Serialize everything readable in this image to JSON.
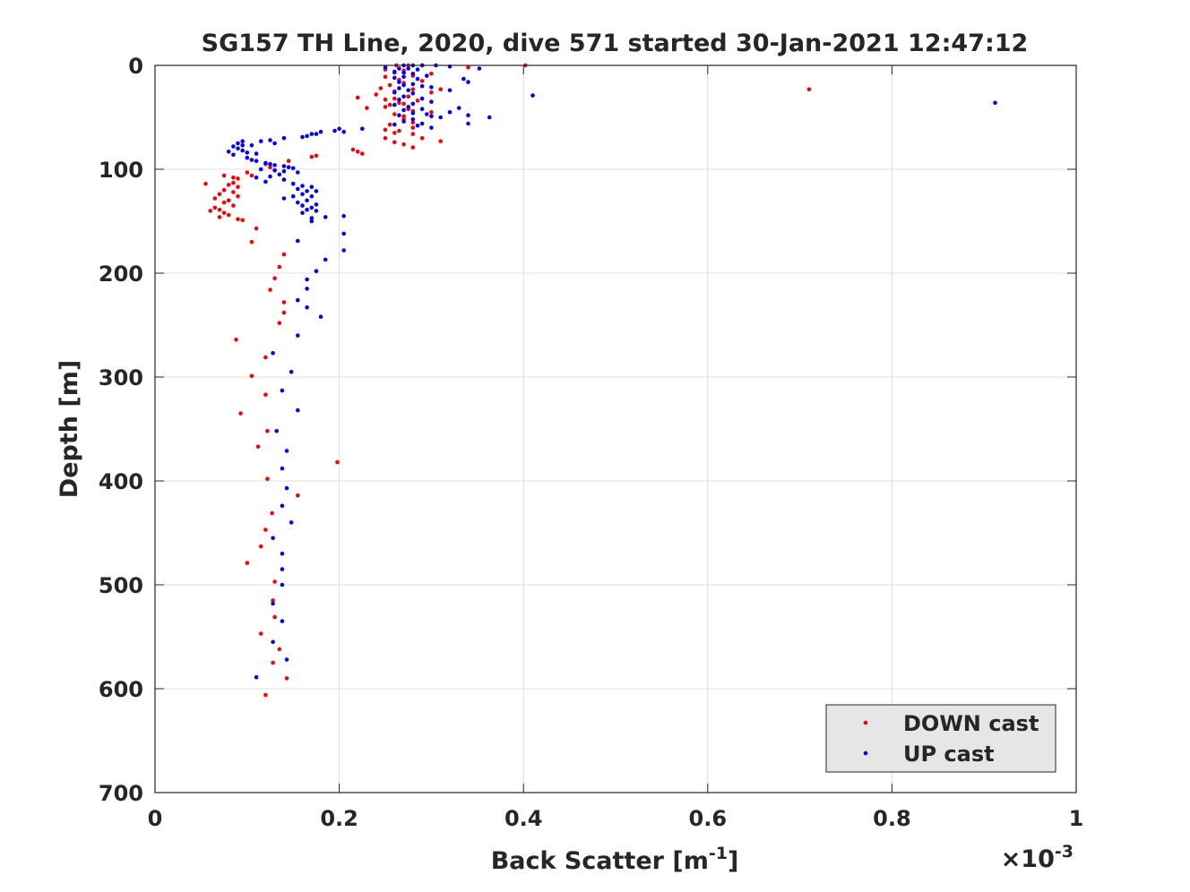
{
  "chart_data": {
    "type": "scatter",
    "title": "SG157 TH Line, 2020, dive 571 started 30-Jan-2021 12:47:12",
    "xlabel_main": "Back Scatter [m",
    "xlabel_sup": "-1",
    "xlabel_end": "]",
    "ylabel": "Depth [m]",
    "exponent_times": "×10",
    "exponent_power": "-3",
    "xlim": [
      0,
      1
    ],
    "ylim": [
      0,
      700
    ],
    "y_reversed": true,
    "grid": true,
    "legend_position": "bottom-right",
    "xticks": [
      0,
      0.2,
      0.4,
      0.6,
      0.8,
      1
    ],
    "xtick_labels": [
      "0",
      "0.2",
      "0.4",
      "0.6",
      "0.8",
      "1"
    ],
    "yticks": [
      0,
      100,
      200,
      300,
      400,
      500,
      600,
      700
    ],
    "ytick_labels": [
      "0",
      "100",
      "200",
      "300",
      "400",
      "500",
      "600",
      "700"
    ],
    "series": [
      {
        "name": "DOWN cast",
        "color": "#ff0000",
        "points": [
          [
            0.262,
            0
          ],
          [
            0.275,
            0
          ],
          [
            0.29,
            0
          ],
          [
            0.402,
            0
          ],
          [
            0.34,
            2
          ],
          [
            0.25,
            4
          ],
          [
            0.27,
            5
          ],
          [
            0.26,
            7
          ],
          [
            0.3,
            8
          ],
          [
            0.28,
            10
          ],
          [
            0.25,
            11
          ],
          [
            0.265,
            14
          ],
          [
            0.29,
            15
          ],
          [
            0.27,
            17
          ],
          [
            0.255,
            19
          ],
          [
            0.245,
            22
          ],
          [
            0.28,
            23
          ],
          [
            0.31,
            23
          ],
          [
            0.71,
            23
          ],
          [
            0.26,
            25
          ],
          [
            0.3,
            26
          ],
          [
            0.24,
            28
          ],
          [
            0.275,
            30
          ],
          [
            0.22,
            31
          ],
          [
            0.26,
            32
          ],
          [
            0.25,
            33
          ],
          [
            0.285,
            34
          ],
          [
            0.265,
            36
          ],
          [
            0.27,
            37
          ],
          [
            0.255,
            38
          ],
          [
            0.25,
            40
          ],
          [
            0.23,
            41
          ],
          [
            0.275,
            42
          ],
          [
            0.28,
            44
          ],
          [
            0.3,
            45
          ],
          [
            0.26,
            47
          ],
          [
            0.27,
            49
          ],
          [
            0.27,
            52
          ],
          [
            0.28,
            55
          ],
          [
            0.255,
            57
          ],
          [
            0.28,
            60
          ],
          [
            0.25,
            62
          ],
          [
            0.265,
            63
          ],
          [
            0.26,
            65
          ],
          [
            0.28,
            66
          ],
          [
            0.25,
            70
          ],
          [
            0.29,
            70
          ],
          [
            0.26,
            74
          ],
          [
            0.31,
            73
          ],
          [
            0.27,
            76
          ],
          [
            0.28,
            79
          ],
          [
            0.215,
            81
          ],
          [
            0.22,
            83
          ],
          [
            0.225,
            85
          ],
          [
            0.175,
            87
          ],
          [
            0.17,
            88
          ],
          [
            0.145,
            92
          ],
          [
            0.12,
            95
          ],
          [
            0.125,
            98
          ],
          [
            0.13,
            101
          ],
          [
            0.1,
            103
          ],
          [
            0.105,
            106
          ],
          [
            0.075,
            106
          ],
          [
            0.085,
            108
          ],
          [
            0.09,
            109
          ],
          [
            0.055,
            114
          ],
          [
            0.085,
            113
          ],
          [
            0.08,
            115
          ],
          [
            0.09,
            117
          ],
          [
            0.075,
            120
          ],
          [
            0.085,
            122
          ],
          [
            0.07,
            124
          ],
          [
            0.09,
            126
          ],
          [
            0.065,
            128
          ],
          [
            0.08,
            130
          ],
          [
            0.075,
            132
          ],
          [
            0.085,
            135
          ],
          [
            0.065,
            137
          ],
          [
            0.07,
            139
          ],
          [
            0.06,
            140
          ],
          [
            0.075,
            142
          ],
          [
            0.08,
            144
          ],
          [
            0.07,
            146
          ],
          [
            0.09,
            148
          ],
          [
            0.095,
            149
          ],
          [
            0.11,
            157
          ],
          [
            0.105,
            170
          ],
          [
            0.14,
            182
          ],
          [
            0.135,
            194
          ],
          [
            0.13,
            205
          ],
          [
            0.125,
            216
          ],
          [
            0.14,
            228
          ],
          [
            0.14,
            238
          ],
          [
            0.135,
            248
          ],
          [
            0.088,
            264
          ],
          [
            0.12,
            281
          ],
          [
            0.105,
            299
          ],
          [
            0.12,
            317
          ],
          [
            0.093,
            335
          ],
          [
            0.122,
            352
          ],
          [
            0.112,
            367
          ],
          [
            0.198,
            382
          ],
          [
            0.122,
            398
          ],
          [
            0.155,
            414
          ],
          [
            0.127,
            431
          ],
          [
            0.12,
            447
          ],
          [
            0.115,
            463
          ],
          [
            0.1,
            479
          ],
          [
            0.13,
            497
          ],
          [
            0.128,
            515
          ],
          [
            0.13,
            531
          ],
          [
            0.115,
            547
          ],
          [
            0.135,
            562
          ],
          [
            0.128,
            575
          ],
          [
            0.143,
            590
          ],
          [
            0.12,
            606
          ]
        ]
      },
      {
        "name": "UP cast",
        "color": "#0000ff",
        "points": [
          [
            0.27,
            0
          ],
          [
            0.28,
            0
          ],
          [
            0.29,
            0
          ],
          [
            0.305,
            0
          ],
          [
            0.32,
            1
          ],
          [
            0.25,
            2
          ],
          [
            0.265,
            3
          ],
          [
            0.275,
            3
          ],
          [
            0.285,
            4
          ],
          [
            0.352,
            3
          ],
          [
            0.26,
            6
          ],
          [
            0.27,
            7
          ],
          [
            0.28,
            8
          ],
          [
            0.295,
            10
          ],
          [
            0.27,
            11
          ],
          [
            0.26,
            12
          ],
          [
            0.285,
            13
          ],
          [
            0.335,
            13
          ],
          [
            0.34,
            16
          ],
          [
            0.265,
            16
          ],
          [
            0.28,
            18
          ],
          [
            0.27,
            19
          ],
          [
            0.29,
            20
          ],
          [
            0.3,
            21
          ],
          [
            0.265,
            22
          ],
          [
            0.275,
            24
          ],
          [
            0.26,
            26
          ],
          [
            0.32,
            24
          ],
          [
            0.28,
            27
          ],
          [
            0.41,
            29
          ],
          [
            0.27,
            30
          ],
          [
            0.29,
            32
          ],
          [
            0.265,
            33
          ],
          [
            0.3,
            35
          ],
          [
            0.28,
            37
          ],
          [
            0.912,
            36
          ],
          [
            0.26,
            38
          ],
          [
            0.275,
            40
          ],
          [
            0.33,
            41
          ],
          [
            0.29,
            42
          ],
          [
            0.27,
            43
          ],
          [
            0.28,
            46
          ],
          [
            0.32,
            45
          ],
          [
            0.295,
            47
          ],
          [
            0.265,
            48
          ],
          [
            0.3,
            49
          ],
          [
            0.34,
            48
          ],
          [
            0.31,
            50
          ],
          [
            0.363,
            50
          ],
          [
            0.28,
            52
          ],
          [
            0.27,
            54
          ],
          [
            0.29,
            56
          ],
          [
            0.34,
            56
          ],
          [
            0.26,
            57
          ],
          [
            0.285,
            58
          ],
          [
            0.3,
            60
          ],
          [
            0.225,
            61
          ],
          [
            0.2,
            61
          ],
          [
            0.195,
            63
          ],
          [
            0.205,
            64
          ],
          [
            0.18,
            64
          ],
          [
            0.175,
            66
          ],
          [
            0.17,
            66
          ],
          [
            0.165,
            68
          ],
          [
            0.16,
            69
          ],
          [
            0.14,
            70
          ],
          [
            0.125,
            72
          ],
          [
            0.115,
            73
          ],
          [
            0.095,
            73
          ],
          [
            0.09,
            75
          ],
          [
            0.13,
            75
          ],
          [
            0.095,
            77
          ],
          [
            0.105,
            77
          ],
          [
            0.085,
            78
          ],
          [
            0.09,
            80
          ],
          [
            0.095,
            82
          ],
          [
            0.08,
            83
          ],
          [
            0.1,
            84
          ],
          [
            0.11,
            85
          ],
          [
            0.085,
            86
          ],
          [
            0.1,
            89
          ],
          [
            0.105,
            91
          ],
          [
            0.11,
            92
          ],
          [
            0.12,
            94
          ],
          [
            0.125,
            95
          ],
          [
            0.13,
            96
          ],
          [
            0.14,
            97
          ],
          [
            0.145,
            98
          ],
          [
            0.15,
            99
          ],
          [
            0.115,
            100
          ],
          [
            0.13,
            101
          ],
          [
            0.14,
            102
          ],
          [
            0.155,
            103
          ],
          [
            0.135,
            105
          ],
          [
            0.125,
            107
          ],
          [
            0.11,
            108
          ],
          [
            0.14,
            110
          ],
          [
            0.12,
            112
          ],
          [
            0.15,
            114
          ],
          [
            0.16,
            116
          ],
          [
            0.17,
            117
          ],
          [
            0.155,
            119
          ],
          [
            0.165,
            121
          ],
          [
            0.175,
            121
          ],
          [
            0.16,
            124
          ],
          [
            0.15,
            126
          ],
          [
            0.17,
            126
          ],
          [
            0.14,
            128
          ],
          [
            0.165,
            130
          ],
          [
            0.155,
            132
          ],
          [
            0.175,
            134
          ],
          [
            0.16,
            135
          ],
          [
            0.17,
            137
          ],
          [
            0.165,
            139
          ],
          [
            0.175,
            140
          ],
          [
            0.16,
            142
          ],
          [
            0.185,
            146
          ],
          [
            0.205,
            145
          ],
          [
            0.17,
            147
          ],
          [
            0.17,
            150
          ],
          [
            0.205,
            162
          ],
          [
            0.155,
            169
          ],
          [
            0.205,
            178
          ],
          [
            0.185,
            187
          ],
          [
            0.175,
            198
          ],
          [
            0.165,
            206
          ],
          [
            0.165,
            215
          ],
          [
            0.155,
            226
          ],
          [
            0.165,
            233
          ],
          [
            0.18,
            242
          ],
          [
            0.155,
            260
          ],
          [
            0.128,
            277
          ],
          [
            0.148,
            295
          ],
          [
            0.138,
            313
          ],
          [
            0.155,
            332
          ],
          [
            0.132,
            352
          ],
          [
            0.143,
            371
          ],
          [
            0.138,
            388
          ],
          [
            0.143,
            407
          ],
          [
            0.138,
            424
          ],
          [
            0.148,
            440
          ],
          [
            0.128,
            455
          ],
          [
            0.138,
            470
          ],
          [
            0.138,
            485
          ],
          [
            0.138,
            500
          ],
          [
            0.128,
            518
          ],
          [
            0.138,
            535
          ],
          [
            0.128,
            555
          ],
          [
            0.143,
            572
          ],
          [
            0.11,
            589
          ]
        ]
      }
    ]
  }
}
